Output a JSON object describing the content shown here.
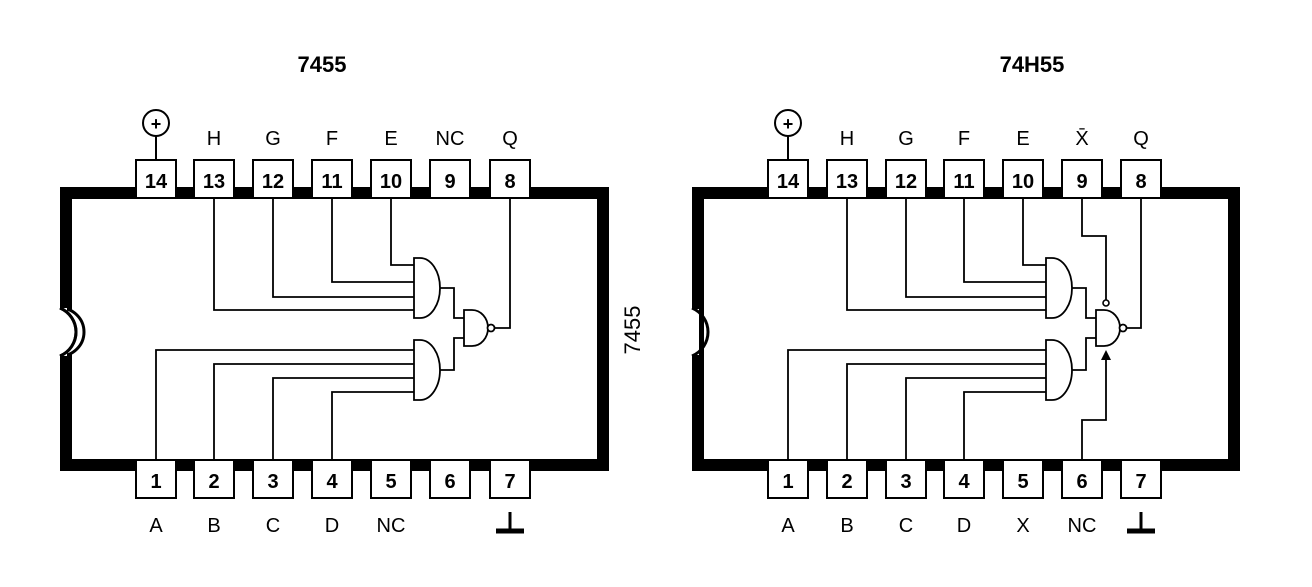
{
  "left_chip": {
    "title": "7455",
    "side_label": "7455",
    "top_pins": [
      {
        "num": "14",
        "label": "+"
      },
      {
        "num": "13",
        "label": "H"
      },
      {
        "num": "12",
        "label": "G"
      },
      {
        "num": "11",
        "label": "F"
      },
      {
        "num": "10",
        "label": "E"
      },
      {
        "num": "9",
        "label": "NC"
      },
      {
        "num": "8",
        "label": "Q"
      }
    ],
    "bottom_pins": [
      {
        "num": "1",
        "label": "A"
      },
      {
        "num": "2",
        "label": "B"
      },
      {
        "num": "3",
        "label": "C"
      },
      {
        "num": "4",
        "label": "D"
      },
      {
        "num": "5",
        "label": "NC"
      },
      {
        "num": "6",
        "label": ""
      },
      {
        "num": "7",
        "label": "ground"
      }
    ]
  },
  "right_chip": {
    "title": "74H55",
    "top_pins": [
      {
        "num": "14",
        "label": "+"
      },
      {
        "num": "13",
        "label": "H"
      },
      {
        "num": "12",
        "label": "G"
      },
      {
        "num": "11",
        "label": "F"
      },
      {
        "num": "10",
        "label": "E"
      },
      {
        "num": "9",
        "label": "X̄"
      },
      {
        "num": "8",
        "label": "Q"
      }
    ],
    "bottom_pins": [
      {
        "num": "1",
        "label": "A"
      },
      {
        "num": "2",
        "label": "B"
      },
      {
        "num": "3",
        "label": "C"
      },
      {
        "num": "4",
        "label": "D"
      },
      {
        "num": "5",
        "label": "X"
      },
      {
        "num": "6",
        "label": "NC"
      },
      {
        "num": "7",
        "label": "ground"
      }
    ]
  }
}
